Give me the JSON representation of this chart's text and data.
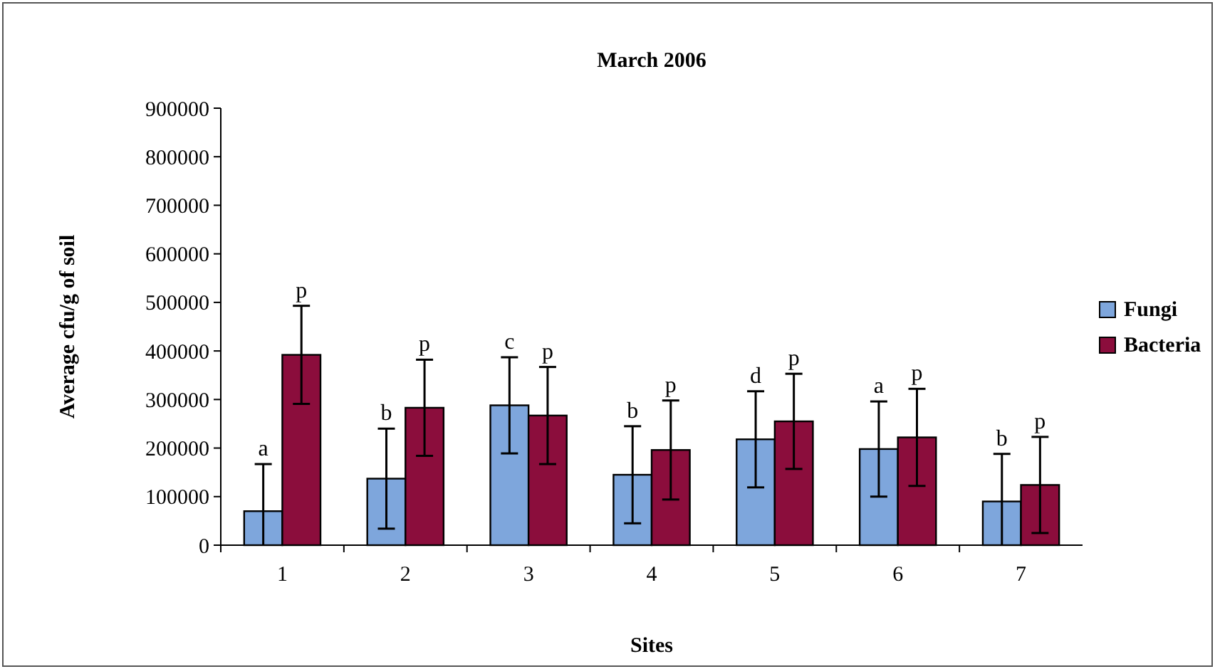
{
  "chart_data": {
    "type": "bar",
    "title": "March 2006",
    "xlabel": "Sites",
    "ylabel": "Average cfu/g of soil",
    "categories": [
      "1",
      "2",
      "3",
      "4",
      "5",
      "6",
      "7"
    ],
    "series": [
      {
        "name": "Fungi",
        "color": "#7ea6dc",
        "values": [
          70000,
          137000,
          288000,
          145000,
          218000,
          198000,
          90000
        ],
        "errors": [
          [
            0,
            167000
          ],
          103000,
          99000,
          100000,
          99000,
          98000,
          [
            0,
            188000
          ]
        ],
        "value_labels": [
          "a",
          "b",
          "c",
          "b",
          "d",
          "a",
          "b"
        ]
      },
      {
        "name": "Bacteria",
        "color": "#8b0d3c",
        "values": [
          392000,
          283000,
          267000,
          196000,
          255000,
          222000,
          124000
        ],
        "errors": [
          101000,
          99000,
          100000,
          102000,
          98000,
          100000,
          99000
        ],
        "value_labels": [
          "p",
          "p",
          "p",
          "p",
          "p",
          "p",
          "p"
        ]
      }
    ],
    "ylim": [
      0,
      900000
    ],
    "yticks": [
      0,
      100000,
      200000,
      300000,
      400000,
      500000,
      600000,
      700000,
      800000,
      900000
    ],
    "grid": false,
    "legend": "right"
  }
}
